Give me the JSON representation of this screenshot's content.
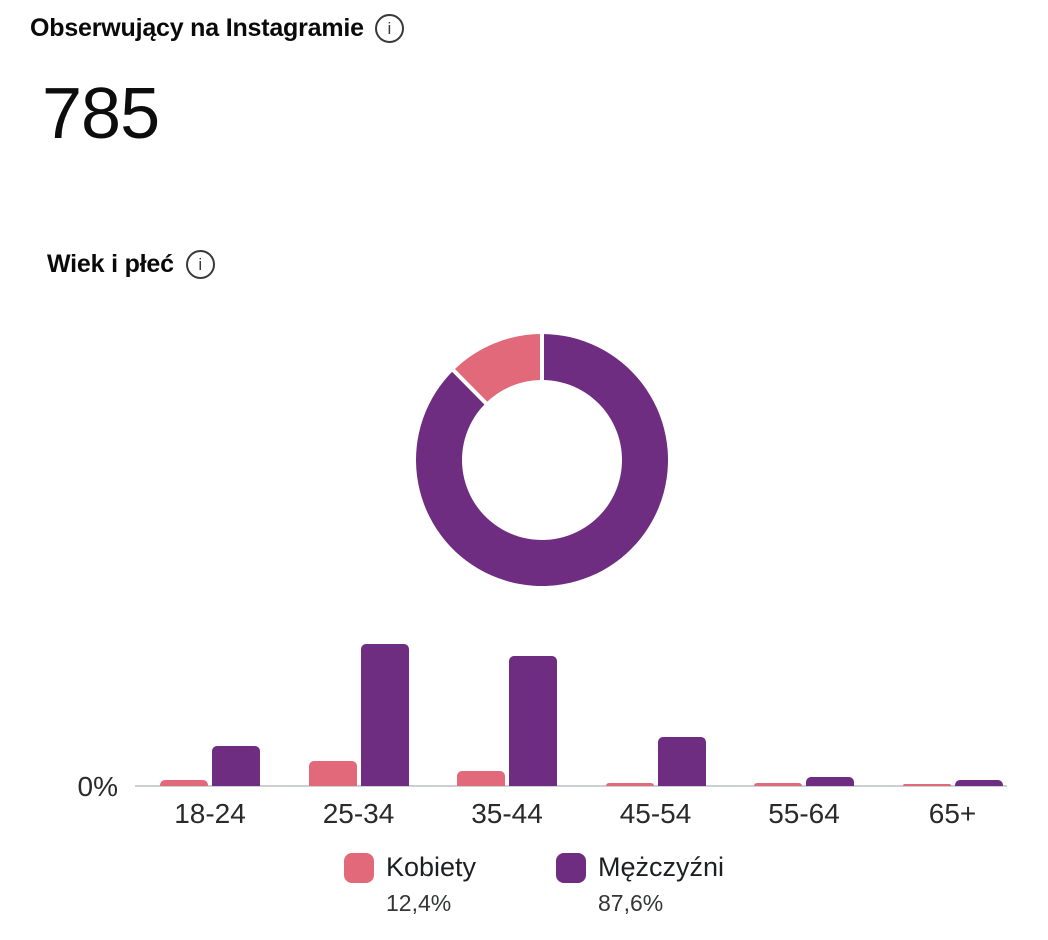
{
  "header": {
    "title": "Obserwujący na Instagramie",
    "value": "785"
  },
  "section": {
    "title": "Wiek i płeć"
  },
  "axis": {
    "zero_label": "0%"
  },
  "legend": {
    "items": [
      {
        "label": "Kobiety",
        "percent": "12,4%",
        "color": "#e1697a"
      },
      {
        "label": "Mężczyźni",
        "percent": "87,6%",
        "color": "#6e2d80"
      }
    ]
  },
  "colors": {
    "women": "#e1697a",
    "men": "#6e2d80",
    "axis_line": "#ccd0d5",
    "text_primary": "#0a0a0a"
  },
  "chart_data": [
    {
      "type": "pie",
      "donut": true,
      "title": "Wiek i płeć",
      "start_angle_deg": 0,
      "direction": "clockwise",
      "slices": [
        {
          "label": "Mężczyźni",
          "value": 87.6,
          "color": "#6e2d80"
        },
        {
          "label": "Kobiety",
          "value": 12.4,
          "color": "#e1697a"
        }
      ]
    },
    {
      "type": "bar",
      "categories": [
        "18-24",
        "25-34",
        "35-44",
        "45-54",
        "55-64",
        "65+"
      ],
      "series": [
        {
          "name": "Kobiety",
          "color": "#e1697a",
          "values": [
            1.3,
            5.8,
            3.6,
            0.7,
            0.6,
            0.5
          ]
        },
        {
          "name": "Mężczyźni",
          "color": "#6e2d80",
          "values": [
            9.3,
            33.0,
            30.2,
            11.5,
            2.1,
            1.4
          ]
        }
      ],
      "value_unit": "%",
      "y_axis_ticks": [
        "0%"
      ],
      "grid": false,
      "legend_position": "bottom"
    }
  ]
}
